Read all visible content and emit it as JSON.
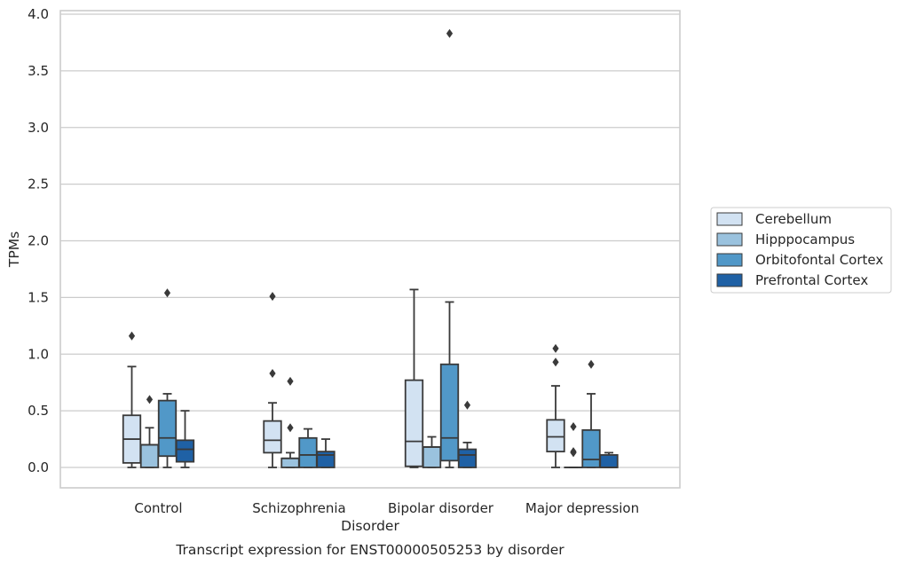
{
  "chart_data": {
    "type": "boxplot",
    "caption": "Transcript expression for ENST00000505253 by disorder",
    "xlabel": "Disorder",
    "ylabel": "TPMs",
    "ylim": [
      -0.18,
      4.03
    ],
    "yticks": [
      0.0,
      0.5,
      1.0,
      1.5,
      2.0,
      2.5,
      3.0,
      3.5,
      4.0
    ],
    "ytick_labels": [
      "0.0",
      "0.5",
      "1.0",
      "1.5",
      "2.0",
      "2.5",
      "3.0",
      "3.5",
      "4.0"
    ],
    "grid": "horizontal",
    "legend_position": "right",
    "categories": [
      "Control",
      "Schizophrenia",
      "Bipolar disorder",
      "Major depression"
    ],
    "series": [
      {
        "name": "Cerebellum",
        "color": "#d2e2f2",
        "boxes": [
          {
            "whislo": 0.0,
            "q1": 0.04,
            "med": 0.25,
            "q3": 0.46,
            "whishi": 0.89,
            "fliers": [
              1.16
            ]
          },
          {
            "whislo": 0.0,
            "q1": 0.13,
            "med": 0.24,
            "q3": 0.41,
            "whishi": 0.57,
            "fliers": [
              0.83,
              1.51
            ]
          },
          {
            "whislo": 0.0,
            "q1": 0.01,
            "med": 0.23,
            "q3": 0.77,
            "whishi": 1.57,
            "fliers": []
          },
          {
            "whislo": 0.0,
            "q1": 0.14,
            "med": 0.27,
            "q3": 0.42,
            "whishi": 0.72,
            "fliers": [
              0.93,
              1.05
            ]
          }
        ]
      },
      {
        "name": "Hipppocampus",
        "color": "#9ac2de",
        "boxes": [
          {
            "whislo": 0.0,
            "q1": 0.0,
            "med": 0.2,
            "q3": 0.2,
            "whishi": 0.35,
            "fliers": [
              0.6
            ]
          },
          {
            "whislo": 0.0,
            "q1": 0.0,
            "med": 0.08,
            "q3": 0.08,
            "whishi": 0.13,
            "fliers": [
              0.35,
              0.76
            ]
          },
          {
            "whislo": 0.0,
            "q1": 0.0,
            "med": 0.18,
            "q3": 0.18,
            "whishi": 0.27,
            "fliers": []
          },
          {
            "whislo": 0.0,
            "q1": 0.0,
            "med": 0.0,
            "q3": 0.0,
            "whishi": 0.0,
            "fliers": [
              0.13,
              0.14,
              0.36
            ]
          }
        ]
      },
      {
        "name": "Orbitofontal Cortex",
        "color": "#5198c8",
        "boxes": [
          {
            "whislo": 0.0,
            "q1": 0.1,
            "med": 0.26,
            "q3": 0.59,
            "whishi": 0.65,
            "fliers": [
              1.54
            ]
          },
          {
            "whislo": 0.0,
            "q1": 0.0,
            "med": 0.11,
            "q3": 0.26,
            "whishi": 0.34,
            "fliers": []
          },
          {
            "whislo": 0.0,
            "q1": 0.06,
            "med": 0.26,
            "q3": 0.91,
            "whishi": 1.46,
            "fliers": [
              3.83
            ]
          },
          {
            "whislo": 0.0,
            "q1": 0.0,
            "med": 0.07,
            "q3": 0.33,
            "whishi": 0.65,
            "fliers": [
              0.91
            ]
          }
        ]
      },
      {
        "name": "Prefrontal Cortex",
        "color": "#1f61a5",
        "boxes": [
          {
            "whislo": 0.0,
            "q1": 0.05,
            "med": 0.16,
            "q3": 0.24,
            "whishi": 0.5,
            "fliers": []
          },
          {
            "whislo": 0.0,
            "q1": 0.0,
            "med": 0.11,
            "q3": 0.14,
            "whishi": 0.25,
            "fliers": []
          },
          {
            "whislo": 0.0,
            "q1": 0.0,
            "med": 0.11,
            "q3": 0.16,
            "whishi": 0.22,
            "fliers": [
              0.55
            ]
          },
          {
            "whislo": 0.0,
            "q1": 0.0,
            "med": 0.0,
            "q3": 0.11,
            "whishi": 0.13,
            "fliers": []
          }
        ]
      }
    ]
  }
}
